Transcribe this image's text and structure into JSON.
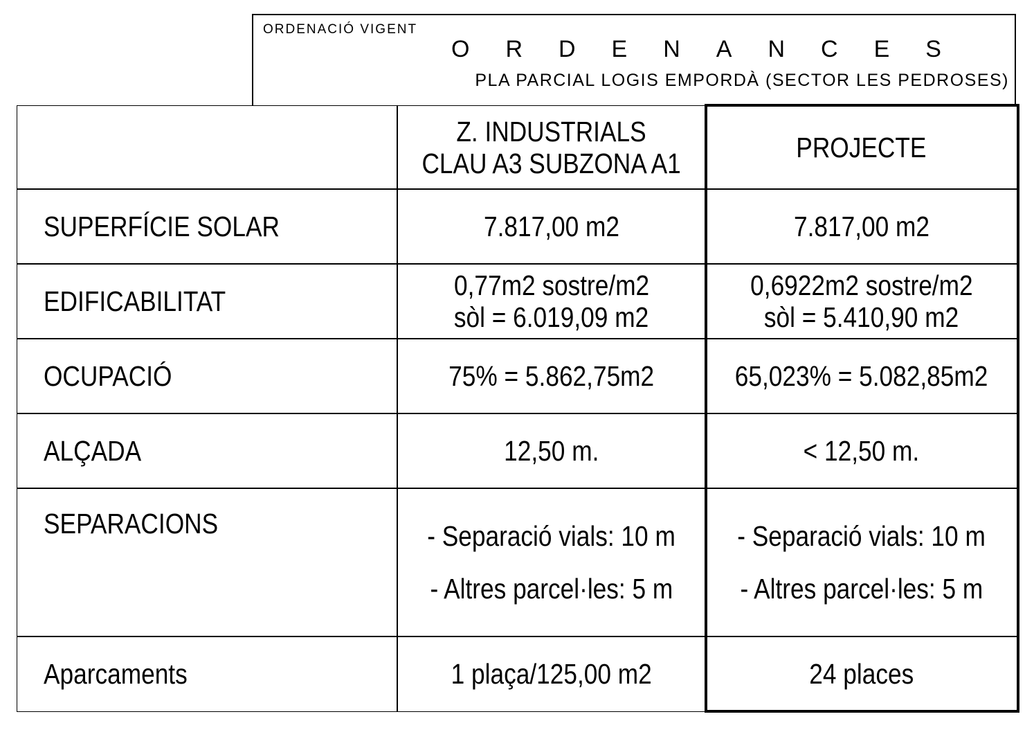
{
  "header": {
    "label": "ORDENACIÓ VIGENT",
    "title": "ORDENANCES",
    "subtitle": "PLA  PARCIAL LOGIS EMPORDÀ (SECTOR LES PEDROSES)"
  },
  "table": {
    "columns": [
      [
        "Z. INDUSTRIALS",
        "CLAU A3 SUBZONA A1"
      ],
      [
        "PROJECTE"
      ]
    ],
    "rows": [
      {
        "label": "SUPERFÍCIE SOLAR",
        "current": [
          "7.817,00 m2"
        ],
        "project": [
          "7.817,00 m2"
        ]
      },
      {
        "label": "EDIFICABILITAT",
        "current": [
          "0,77m2 sostre/m2",
          "sòl = 6.019,09 m2"
        ],
        "project": [
          "0,6922m2 sostre/m2",
          "sòl = 5.410,90 m2"
        ]
      },
      {
        "label": "OCUPACIÓ",
        "current": [
          "75% = 5.862,75m2"
        ],
        "project": [
          "65,023% = 5.082,85m2"
        ]
      },
      {
        "label": "ALÇADA",
        "current": [
          "12,50 m."
        ],
        "project": [
          "< 12,50 m."
        ]
      },
      {
        "label": "SEPARACIONS",
        "current": [
          "- Separació vials: 10 m",
          "- Altres parcel·les: 5 m"
        ],
        "project": [
          "- Separació vials: 10 m",
          "- Altres parcel·les: 5 m"
        ]
      },
      {
        "label": "Aparcaments",
        "current": [
          "1 plaça/125,00 m2"
        ],
        "project": [
          "24 places"
        ]
      }
    ]
  }
}
